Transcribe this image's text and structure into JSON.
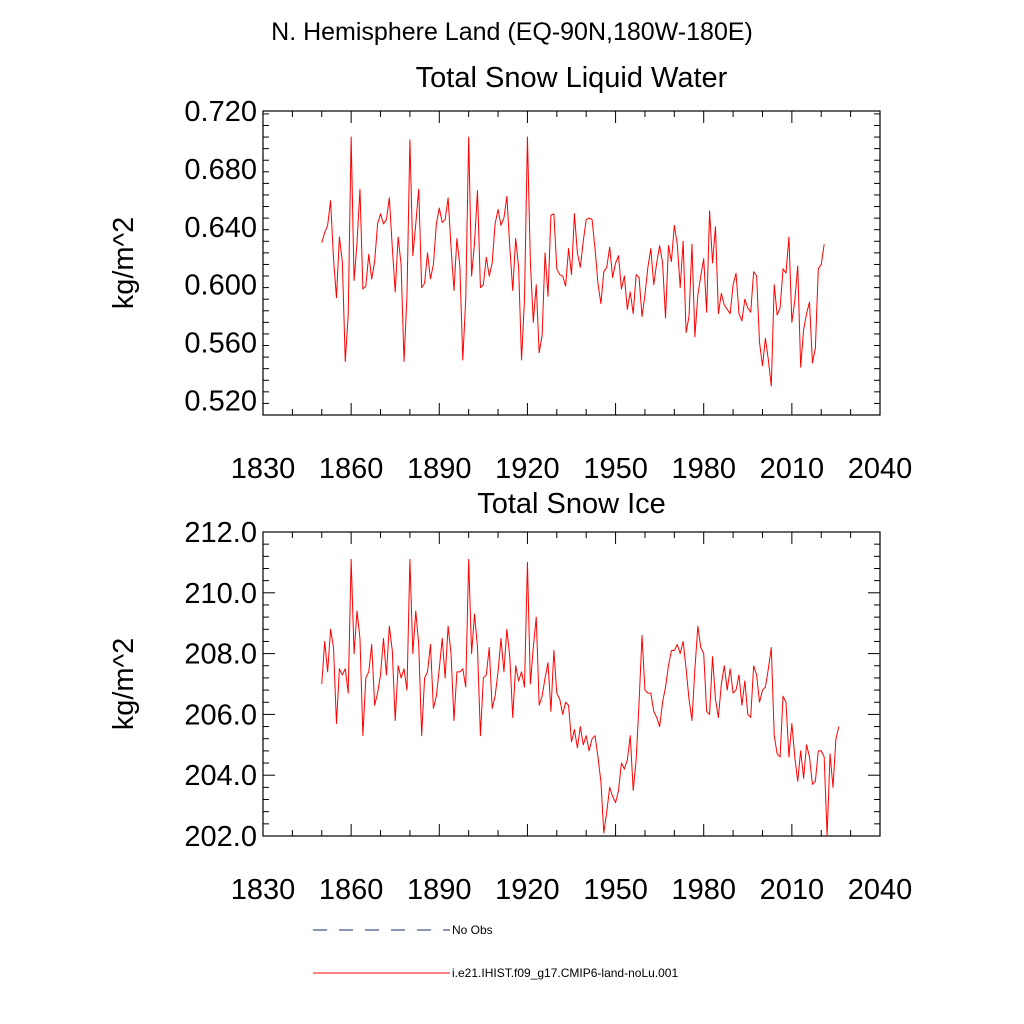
{
  "figure_title": "N. Hemisphere Land (EQ-90N,180W-180E)",
  "legend": [
    {
      "label": "No Obs",
      "color": "#1c2e6e",
      "dash": true
    },
    {
      "label": "i.e21.IHIST.f09_g17.CMIP6-land-noLu.001",
      "color": "#ff0000",
      "dash": false
    }
  ],
  "chart_data": [
    {
      "type": "line",
      "title": "Total Snow Liquid Water",
      "xlabel": "",
      "ylabel": "kg/m^2",
      "xlim": [
        1830,
        2040
      ],
      "ylim": [
        0.51,
        0.72
      ],
      "x_ticks": [
        "1830",
        "1860",
        "1890",
        "1920",
        "1950",
        "1980",
        "2010",
        "2040"
      ],
      "y_ticks": [
        "0.720",
        "0.680",
        "0.640",
        "0.600",
        "0.560",
        "0.520"
      ],
      "series": [
        {
          "color": "#ff0000",
          "x_start": 1850,
          "values": [
            0.629,
            0.636,
            0.641,
            0.658,
            0.618,
            0.591,
            0.633,
            0.616,
            0.547,
            0.579,
            0.702,
            0.603,
            0.629,
            0.666,
            0.597,
            0.599,
            0.621,
            0.604,
            0.616,
            0.642,
            0.649,
            0.642,
            0.645,
            0.66,
            0.626,
            0.595,
            0.633,
            0.614,
            0.547,
            0.592,
            0.7,
            0.62,
            0.642,
            0.666,
            0.598,
            0.601,
            0.622,
            0.604,
            0.614,
            0.642,
            0.653,
            0.643,
            0.645,
            0.66,
            0.626,
            0.596,
            0.632,
            0.613,
            0.548,
            0.59,
            0.702,
            0.606,
            0.629,
            0.665,
            0.598,
            0.6,
            0.619,
            0.606,
            0.615,
            0.642,
            0.652,
            0.641,
            0.646,
            0.661,
            0.626,
            0.596,
            0.632,
            0.612,
            0.548,
            0.59,
            0.702,
            0.616,
            0.574,
            0.6,
            0.553,
            0.565,
            0.622,
            0.592,
            0.648,
            0.649,
            0.611,
            0.607,
            0.606,
            0.599,
            0.625,
            0.607,
            0.649,
            0.622,
            0.612,
            0.63,
            0.645,
            0.646,
            0.645,
            0.625,
            0.601,
            0.587,
            0.609,
            0.612,
            0.626,
            0.605,
            0.615,
            0.62,
            0.597,
            0.606,
            0.583,
            0.595,
            0.58,
            0.607,
            0.605,
            0.578,
            0.593,
            0.612,
            0.625,
            0.6,
            0.615,
            0.627,
            0.615,
            0.577,
            0.627,
            0.616,
            0.641,
            0.628,
            0.598,
            0.63,
            0.567,
            0.578,
            0.628,
            0.564,
            0.593,
            0.606,
            0.618,
            0.581,
            0.651,
            0.615,
            0.64,
            0.58,
            0.594,
            0.586,
            0.583,
            0.58,
            0.6,
            0.608,
            0.58,
            0.575,
            0.59,
            0.584,
            0.581,
            0.609,
            0.606,
            0.56,
            0.544,
            0.563,
            0.548,
            0.53,
            0.6,
            0.579,
            0.584,
            0.611,
            0.608,
            0.633,
            0.574,
            0.589,
            0.613,
            0.543,
            0.569,
            0.58,
            0.588,
            0.546,
            0.556,
            0.611,
            0.614,
            0.628
          ]
        }
      ]
    },
    {
      "type": "line",
      "title": "Total Snow Ice",
      "xlabel": "",
      "ylabel": "kg/m^2",
      "xlim": [
        1830,
        2040
      ],
      "ylim": [
        202.0,
        212.0
      ],
      "x_ticks": [
        "1830",
        "1860",
        "1890",
        "1920",
        "1950",
        "1980",
        "2010",
        "2040"
      ],
      "y_ticks": [
        "212.0",
        "210.0",
        "208.0",
        "206.0",
        "204.0",
        "202.0"
      ],
      "series": [
        {
          "color": "#ff0000",
          "x_start": 1850,
          "values": [
            207.0,
            208.4,
            207.4,
            208.8,
            208.2,
            205.7,
            207.5,
            207.3,
            207.5,
            206.7,
            211.1,
            208.0,
            209.4,
            208.5,
            205.3,
            207.2,
            207.4,
            208.3,
            206.3,
            206.7,
            207.3,
            208.5,
            207.3,
            208.9,
            208.1,
            205.8,
            207.6,
            207.2,
            207.5,
            206.8,
            211.1,
            208.0,
            209.4,
            208.3,
            205.3,
            207.2,
            207.4,
            208.3,
            206.2,
            206.6,
            207.5,
            208.5,
            207.2,
            208.9,
            208.0,
            205.8,
            207.4,
            207.4,
            207.5,
            206.9,
            211.1,
            208.0,
            209.3,
            208.2,
            205.3,
            207.2,
            207.3,
            208.2,
            206.2,
            206.6,
            207.4,
            208.5,
            207.4,
            208.8,
            207.9,
            205.9,
            207.6,
            207.1,
            207.4,
            206.9,
            211.0,
            207.0,
            208.2,
            209.2,
            206.3,
            206.6,
            207.2,
            207.7,
            206.1,
            208.1,
            206.7,
            206.5,
            206.0,
            206.4,
            206.3,
            205.1,
            205.5,
            204.9,
            205.6,
            205.0,
            205.3,
            204.8,
            205.2,
            205.3,
            204.6,
            203.8,
            202.1,
            202.8,
            203.6,
            203.3,
            203.1,
            203.5,
            204.4,
            204.2,
            204.5,
            205.3,
            203.5,
            204.5,
            206.4,
            208.6,
            206.8,
            206.7,
            206.7,
            206.1,
            205.9,
            205.6,
            206.4,
            206.9,
            207.6,
            208.1,
            208.1,
            208.3,
            208.0,
            208.4,
            207.5,
            206.5,
            205.8,
            207.5,
            208.9,
            208.2,
            208.0,
            206.1,
            206.0,
            207.9,
            206.5,
            205.9,
            207.0,
            207.6,
            206.8,
            207.5,
            206.7,
            206.8,
            207.3,
            206.3,
            207.1,
            206.0,
            205.9,
            207.6,
            207.3,
            206.4,
            206.8,
            206.9,
            207.5,
            208.2,
            205.3,
            204.7,
            204.6,
            206.6,
            206.4,
            204.6,
            205.7,
            204.6,
            203.8,
            204.8,
            203.9,
            205.0,
            204.6,
            203.7,
            203.8,
            204.8,
            204.8,
            204.6,
            202.0,
            204.7,
            203.6,
            205.2,
            205.6
          ]
        }
      ]
    }
  ]
}
